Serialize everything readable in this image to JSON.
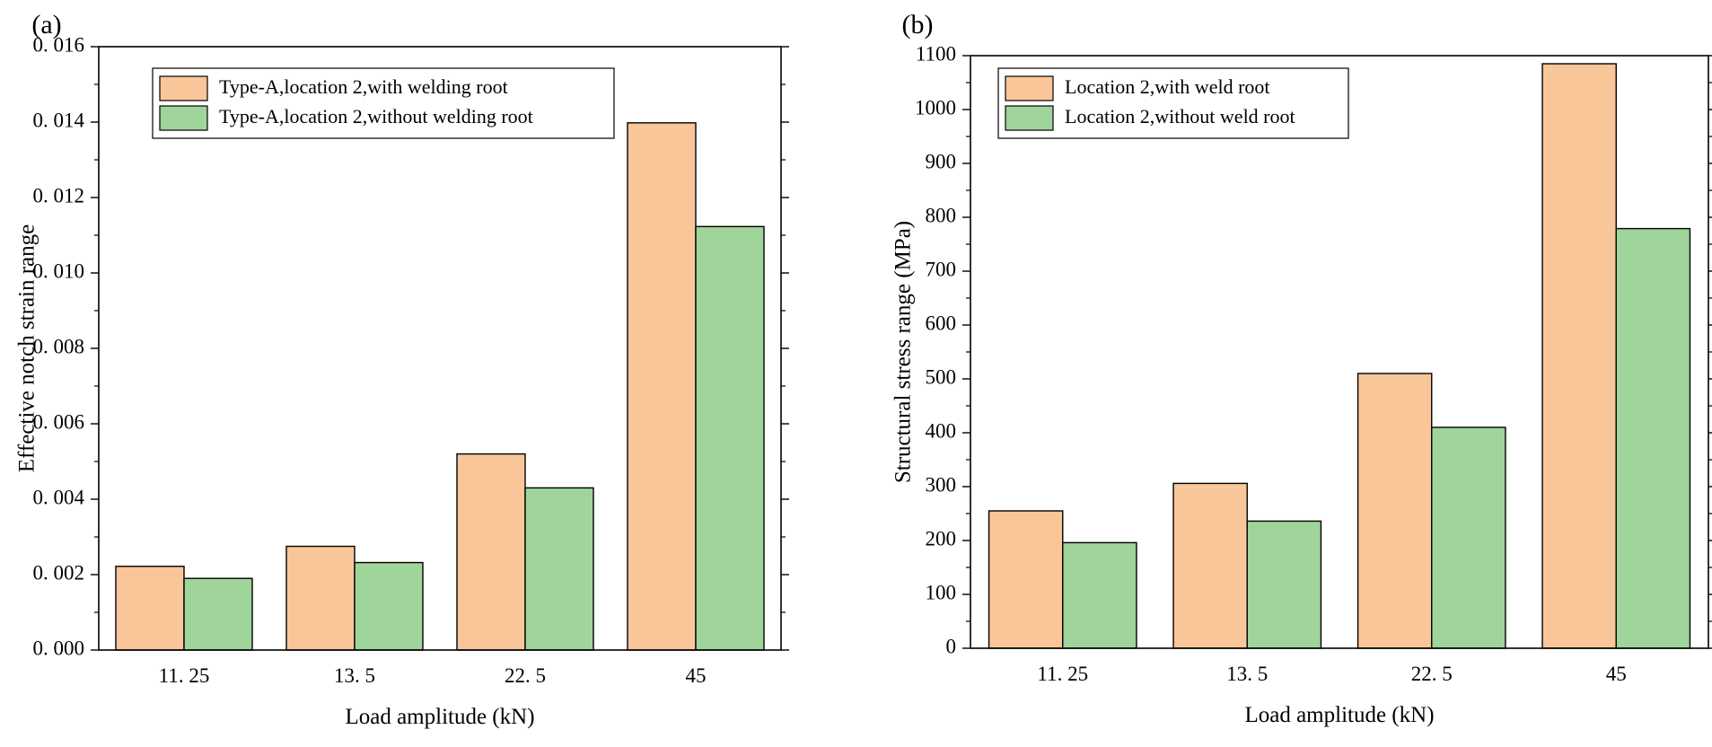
{
  "chart_data": [
    {
      "panel_label": "(a)",
      "type": "bar",
      "categories": [
        "11. 25",
        "13. 5",
        "22. 5",
        "45"
      ],
      "xlabel": "Load amplitude (kN)",
      "ylabel": "Effective notch strain range",
      "ylim": [
        0,
        0.016
      ],
      "yticks": [
        0,
        0.002,
        0.004,
        0.006,
        0.008,
        0.01,
        0.012,
        0.014,
        0.016
      ],
      "ytick_labels": [
        "0. 000",
        "0. 002",
        "0. 004",
        "0. 006",
        "0. 008",
        "0. 010",
        "0. 012",
        "0. 014",
        "0. 016"
      ],
      "legend_position": "top-left",
      "series": [
        {
          "name": "Type-A,location 2,with welding root",
          "color": "#F9C69A",
          "values": [
            0.00222,
            0.00275,
            0.0052,
            0.01398
          ]
        },
        {
          "name": "Type-A,location 2,without welding root",
          "color": "#9FD49A",
          "values": [
            0.0019,
            0.00232,
            0.0043,
            0.01123
          ]
        }
      ]
    },
    {
      "panel_label": "(b)",
      "type": "bar",
      "categories": [
        "11. 25",
        "13. 5",
        "22. 5",
        "45"
      ],
      "xlabel": "Load amplitude (kN)",
      "ylabel": "Structural stress range (MPa)",
      "ylim": [
        0,
        1100
      ],
      "yticks": [
        0,
        100,
        200,
        300,
        400,
        500,
        600,
        700,
        800,
        900,
        1000,
        1100
      ],
      "ytick_labels": [
        "0",
        "100",
        "200",
        "300",
        "400",
        "500",
        "600",
        "700",
        "800",
        "900",
        "1000",
        "1100"
      ],
      "legend_position": "top-left",
      "series": [
        {
          "name": "Location 2,with weld root",
          "color": "#F9C69A",
          "values": [
            255,
            306,
            510,
            1085
          ]
        },
        {
          "name": "Location 2,without weld root",
          "color": "#9FD49A",
          "values": [
            196,
            236,
            410,
            779
          ]
        }
      ]
    }
  ]
}
